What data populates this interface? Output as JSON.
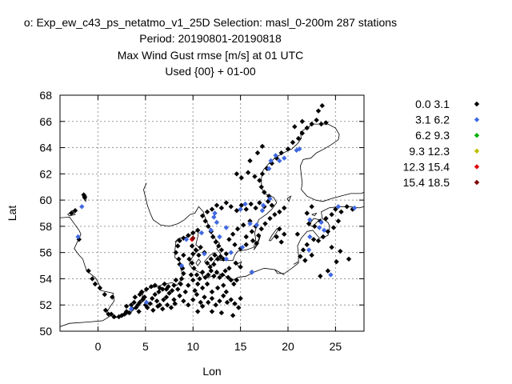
{
  "titles": {
    "line1": "o: Exp_ew_c43_ps_netatmo_v1_25D   Selection: masl_0-200m    287 stations",
    "line2": "Period: 20190801-20190818",
    "line3": "Max Wind Gust rmse [m/s] at  01 UTC",
    "line4": "Used {00} + 01-00"
  },
  "chart_data": {
    "type": "scatter",
    "xlabel": "Lon",
    "ylabel": "Lat",
    "xlim": [
      -4,
      28
    ],
    "ylim": [
      50,
      68
    ],
    "xticks": [
      0,
      5,
      10,
      15,
      20,
      25
    ],
    "yticks": [
      50,
      52,
      54,
      56,
      58,
      60,
      62,
      64,
      66,
      68
    ],
    "grid": true,
    "legend_position": "right",
    "legend": [
      {
        "label": "0.0 3.1",
        "color": "#000000"
      },
      {
        "label": "3.1 6.2",
        "color": "#4169e1"
      },
      {
        "label": "6.2 9.3",
        "color": "#00b000"
      },
      {
        "label": "9.3 12.3",
        "color": "#c0c000"
      },
      {
        "label": "12.3 15.4",
        "color": "#e00000"
      },
      {
        "label": "15.4 18.5",
        "color": "#800000"
      }
    ],
    "series": [
      {
        "legend_index": 0,
        "points": [
          [
            -1.5,
            60.4
          ],
          [
            -1.4,
            60.2
          ],
          [
            -2.8,
            59.0
          ],
          [
            -2.4,
            59.2
          ],
          [
            -2.0,
            57.0
          ],
          [
            -1.0,
            54.6
          ],
          [
            -0.6,
            54.0
          ],
          [
            -0.3,
            53.6
          ],
          [
            0.2,
            53.3
          ],
          [
            0.7,
            52.8
          ],
          [
            0.8,
            51.6
          ],
          [
            1.1,
            51.3
          ],
          [
            1.4,
            51.3
          ],
          [
            1.5,
            52.6
          ],
          [
            1.7,
            51.1
          ],
          [
            2.2,
            51.1
          ],
          [
            2.5,
            51.2
          ],
          [
            2.8,
            51.3
          ],
          [
            3.0,
            51.5
          ],
          [
            3.3,
            51.4
          ],
          [
            3.6,
            51.7
          ],
          [
            3.0,
            51.9
          ],
          [
            3.5,
            52.0
          ],
          [
            3.8,
            52.2
          ],
          [
            4.0,
            51.8
          ],
          [
            4.3,
            51.5
          ],
          [
            4.2,
            52.0
          ],
          [
            4.4,
            52.2
          ],
          [
            4.7,
            52.4
          ],
          [
            4.9,
            52.6
          ],
          [
            5.0,
            52.0
          ],
          [
            5.2,
            51.8
          ],
          [
            5.5,
            52.1
          ],
          [
            5.7,
            52.5
          ],
          [
            6.0,
            52.8
          ],
          [
            6.2,
            52.3
          ],
          [
            6.5,
            52.0
          ],
          [
            6.9,
            52.4
          ],
          [
            7.2,
            52.6
          ],
          [
            7.5,
            52.9
          ],
          [
            7.8,
            53.1
          ],
          [
            4.6,
            53.0
          ],
          [
            5.1,
            53.2
          ],
          [
            5.6,
            53.4
          ],
          [
            6.0,
            53.5
          ],
          [
            6.5,
            53.3
          ],
          [
            7.0,
            53.6
          ],
          [
            7.2,
            53.2
          ],
          [
            8.0,
            53.5
          ],
          [
            8.4,
            53.2
          ],
          [
            8.7,
            53.6
          ],
          [
            8.2,
            53.9
          ],
          [
            8.8,
            54.0
          ],
          [
            9.0,
            54.4
          ],
          [
            8.9,
            54.8
          ],
          [
            8.6,
            55.1
          ],
          [
            8.5,
            55.5
          ],
          [
            8.2,
            56.0
          ],
          [
            8.4,
            56.5
          ],
          [
            8.6,
            56.9
          ],
          [
            9.0,
            57.1
          ],
          [
            9.5,
            57.3
          ],
          [
            10.0,
            57.5
          ],
          [
            10.5,
            57.7
          ],
          [
            9.9,
            56.5
          ],
          [
            10.3,
            56.2
          ],
          [
            10.6,
            55.8
          ],
          [
            9.6,
            55.5
          ],
          [
            9.9,
            55.2
          ],
          [
            10.1,
            54.8
          ],
          [
            10.4,
            54.3
          ],
          [
            10.7,
            54.0
          ],
          [
            11.0,
            54.5
          ],
          [
            11.3,
            54.1
          ],
          [
            11.6,
            54.3
          ],
          [
            11.9,
            54.6
          ],
          [
            12.2,
            54.2
          ],
          [
            12.5,
            54.5
          ],
          [
            12.8,
            54.1
          ],
          [
            13.1,
            54.3
          ],
          [
            13.4,
            54.6
          ],
          [
            13.7,
            54.1
          ],
          [
            14.0,
            53.9
          ],
          [
            14.3,
            53.6
          ],
          [
            14.6,
            53.9
          ],
          [
            13.2,
            53.5
          ],
          [
            12.6,
            53.3
          ],
          [
            12.0,
            53.0
          ],
          [
            11.5,
            53.6
          ],
          [
            11.0,
            53.3
          ],
          [
            10.5,
            53.6
          ],
          [
            10.0,
            53.9
          ],
          [
            9.5,
            53.5
          ],
          [
            9.2,
            53.0
          ],
          [
            8.6,
            52.7
          ],
          [
            9.0,
            52.3
          ],
          [
            9.5,
            52.0
          ],
          [
            10.0,
            52.4
          ],
          [
            10.4,
            52.8
          ],
          [
            10.8,
            52.2
          ],
          [
            11.2,
            52.6
          ],
          [
            11.6,
            52.2
          ],
          [
            12.0,
            52.5
          ],
          [
            12.4,
            52.0
          ],
          [
            12.8,
            52.3
          ],
          [
            13.2,
            52.7
          ],
          [
            13.6,
            52.2
          ],
          [
            14.0,
            52.4
          ],
          [
            14.4,
            52.1
          ],
          [
            14.8,
            51.8
          ],
          [
            15.0,
            52.5
          ],
          [
            8.1,
            52.1
          ],
          [
            7.7,
            51.8
          ],
          [
            7.3,
            52.0
          ],
          [
            6.8,
            51.7
          ],
          [
            6.3,
            51.9
          ],
          [
            5.8,
            51.6
          ],
          [
            11.5,
            55.2
          ],
          [
            11.9,
            55.5
          ],
          [
            12.3,
            55.8
          ],
          [
            12.6,
            55.5
          ],
          [
            12.2,
            55.1
          ],
          [
            11.8,
            54.9
          ],
          [
            12.9,
            55.7
          ],
          [
            13.2,
            55.5
          ],
          [
            13.5,
            55.9
          ],
          [
            13.0,
            56.2
          ],
          [
            12.7,
            56.5
          ],
          [
            12.4,
            56.8
          ],
          [
            12.1,
            57.2
          ],
          [
            11.9,
            57.6
          ],
          [
            11.6,
            58.0
          ],
          [
            11.3,
            58.4
          ],
          [
            11.0,
            58.8
          ],
          [
            11.5,
            59.1
          ],
          [
            12.0,
            59.3
          ],
          [
            12.5,
            59.6
          ],
          [
            13.0,
            59.4
          ],
          [
            13.5,
            59.8
          ],
          [
            14.0,
            59.5
          ],
          [
            14.6,
            59.2
          ],
          [
            15.1,
            59.6
          ],
          [
            15.6,
            59.3
          ],
          [
            16.1,
            59.7
          ],
          [
            16.6,
            59.4
          ],
          [
            17.0,
            59.8
          ],
          [
            17.5,
            59.5
          ],
          [
            17.9,
            59.9
          ],
          [
            18.3,
            59.6
          ],
          [
            18.0,
            60.3
          ],
          [
            17.5,
            60.6
          ],
          [
            17.2,
            61.0
          ],
          [
            17.0,
            61.5
          ],
          [
            17.3,
            62.0
          ],
          [
            17.8,
            62.4
          ],
          [
            18.3,
            62.8
          ],
          [
            18.8,
            63.2
          ],
          [
            19.3,
            63.6
          ],
          [
            20.0,
            63.9
          ],
          [
            20.5,
            64.4
          ],
          [
            21.1,
            64.7
          ],
          [
            21.5,
            65.1
          ],
          [
            22.0,
            65.5
          ],
          [
            22.5,
            65.8
          ],
          [
            23.0,
            66.1
          ],
          [
            23.5,
            65.8
          ],
          [
            24.0,
            65.9
          ],
          [
            23.2,
            66.8
          ],
          [
            23.6,
            67.2
          ],
          [
            20.7,
            65.6
          ],
          [
            21.5,
            66.0
          ],
          [
            16.5,
            61.8
          ],
          [
            15.8,
            62.1
          ],
          [
            15.1,
            61.7
          ],
          [
            14.6,
            62.0
          ],
          [
            16.0,
            63.0
          ],
          [
            16.8,
            63.6
          ],
          [
            17.3,
            64.1
          ],
          [
            15.6,
            57.2
          ],
          [
            16.2,
            57.6
          ],
          [
            16.6,
            58.0
          ],
          [
            16.0,
            58.4
          ],
          [
            15.3,
            58.1
          ],
          [
            14.7,
            57.8
          ],
          [
            14.2,
            57.4
          ],
          [
            13.8,
            57.0
          ],
          [
            14.4,
            56.6
          ],
          [
            15.0,
            56.3
          ],
          [
            15.6,
            56.6
          ],
          [
            16.3,
            56.9
          ],
          [
            16.9,
            57.3
          ],
          [
            17.2,
            57.8
          ],
          [
            17.6,
            58.2
          ],
          [
            18.1,
            58.6
          ],
          [
            18.6,
            58.9
          ],
          [
            19.1,
            59.1
          ],
          [
            19.6,
            59.4
          ],
          [
            16.7,
            56.7
          ],
          [
            19.1,
            57.8
          ],
          [
            19.6,
            57.4
          ],
          [
            19.3,
            56.8
          ],
          [
            18.8,
            57.2
          ],
          [
            22.2,
            58.2
          ],
          [
            22.8,
            58.0
          ],
          [
            23.4,
            58.4
          ],
          [
            24.0,
            58.6
          ],
          [
            24.6,
            58.9
          ],
          [
            25.0,
            59.3
          ],
          [
            25.6,
            59.1
          ],
          [
            26.2,
            59.5
          ],
          [
            26.8,
            59.3
          ],
          [
            25.3,
            58.4
          ],
          [
            24.8,
            57.9
          ],
          [
            24.2,
            57.6
          ],
          [
            23.7,
            57.2
          ],
          [
            23.2,
            56.9
          ],
          [
            22.7,
            57.0
          ],
          [
            22.0,
            56.6
          ],
          [
            21.6,
            56.2
          ],
          [
            21.3,
            55.7
          ],
          [
            21.8,
            55.4
          ],
          [
            23.4,
            54.2
          ],
          [
            24.2,
            54.6
          ],
          [
            25.1,
            55.3
          ],
          [
            26.4,
            55.5
          ],
          [
            25.5,
            56.1
          ],
          [
            24.6,
            56.4
          ],
          [
            22.5,
            55.8
          ],
          [
            21.0,
            57.4
          ],
          [
            22.0,
            59.0
          ],
          [
            22.5,
            59.5
          ],
          [
            10.5,
            51.5
          ],
          [
            11.0,
            51.9
          ],
          [
            12.0,
            51.5
          ],
          [
            13.0,
            51.4
          ],
          [
            14.2,
            51.2
          ],
          [
            6.4,
            53.0
          ],
          [
            6.8,
            53.2
          ],
          [
            7.4,
            53.4
          ],
          [
            3.9,
            52.6
          ],
          [
            4.4,
            52.8
          ],
          [
            9.0,
            55.8
          ],
          [
            10.0,
            55.9
          ],
          [
            10.8,
            56.4
          ],
          [
            11.2,
            56.0
          ],
          [
            9.8,
            54.3
          ],
          [
            13.8,
            54.8
          ],
          [
            15.0,
            54.9
          ],
          [
            14.5,
            55.2
          ],
          [
            16.2,
            54.5
          ],
          [
            13.5,
            53.0
          ],
          [
            10.2,
            53.1
          ],
          [
            8.0,
            52.4
          ]
        ]
      },
      {
        "legend_index": 1,
        "points": [
          [
            -1.7,
            59.5
          ],
          [
            -2.1,
            57.2
          ],
          [
            3.5,
            51.7
          ],
          [
            5.1,
            52.2
          ],
          [
            8.8,
            55.0
          ],
          [
            9.3,
            57.0
          ],
          [
            10.9,
            57.5
          ],
          [
            11.9,
            57.7
          ],
          [
            12.5,
            58.3
          ],
          [
            12.3,
            59.0
          ],
          [
            12.2,
            58.7
          ],
          [
            12.8,
            57.2
          ],
          [
            13.5,
            57.9
          ],
          [
            13.5,
            55.5
          ],
          [
            14.0,
            56.0
          ],
          [
            15.2,
            56.4
          ],
          [
            15.0,
            59.3
          ],
          [
            15.5,
            59.7
          ],
          [
            16.0,
            58.2
          ],
          [
            16.7,
            58.1
          ],
          [
            17.3,
            59.2
          ],
          [
            17.4,
            59.6
          ],
          [
            18.1,
            60.1
          ],
          [
            18.0,
            62.4
          ],
          [
            18.2,
            63.0
          ],
          [
            18.7,
            63.4
          ],
          [
            19.1,
            63.0
          ],
          [
            19.6,
            63.2
          ],
          [
            20.9,
            63.8
          ],
          [
            21.2,
            63.9
          ],
          [
            22.3,
            58.5
          ],
          [
            22.3,
            57.2
          ],
          [
            22.2,
            56.2
          ],
          [
            23.3,
            57.9
          ],
          [
            23.8,
            57.7
          ],
          [
            23.5,
            58.3
          ],
          [
            25.3,
            59.5
          ],
          [
            27.0,
            59.4
          ],
          [
            24.5,
            54.3
          ],
          [
            16.2,
            54.5
          ],
          [
            11.2,
            55.9
          ]
        ]
      },
      {
        "legend_index": 4,
        "points": [
          [
            9.9,
            57.0
          ]
        ]
      },
      {
        "legend_index": 5,
        "points": [
          [
            10.0,
            57.1
          ]
        ]
      }
    ]
  }
}
